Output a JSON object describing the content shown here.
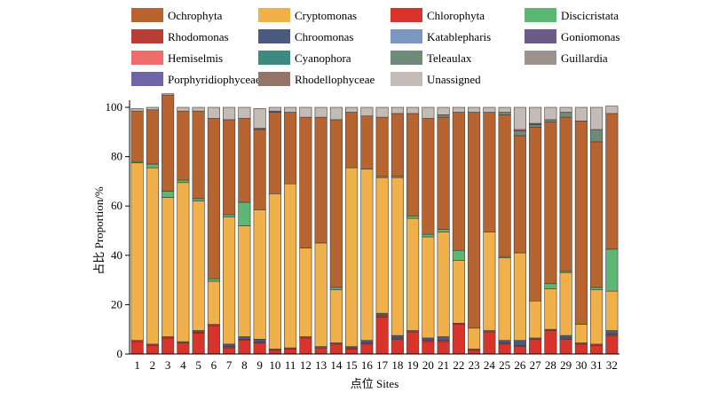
{
  "chart_data": {
    "type": "bar",
    "stacked": true,
    "xlabel": "点位 Sites",
    "ylabel": "占比 Proportion/%",
    "ylim": [
      0,
      100
    ],
    "yticks": [
      0,
      20,
      40,
      60,
      80,
      100
    ],
    "legend_position": "top",
    "categories": [
      "1",
      "2",
      "3",
      "4",
      "5",
      "6",
      "7",
      "8",
      "9",
      "10",
      "11",
      "12",
      "13",
      "14",
      "15",
      "16",
      "17",
      "18",
      "19",
      "20",
      "21",
      "22",
      "23",
      "24",
      "25",
      "26",
      "27",
      "28",
      "29",
      "30",
      "31",
      "32"
    ],
    "series": [
      {
        "name": "Chlorophyta",
        "color": "#d8342b",
        "values": [
          5,
          3.5,
          6.5,
          4.5,
          8.5,
          11.5,
          2.5,
          5.5,
          4.5,
          1.5,
          2,
          6.5,
          2.5,
          4,
          2,
          4,
          15,
          6,
          9,
          5,
          5,
          12,
          1.5,
          9,
          4,
          3,
          6,
          9.5,
          6,
          4,
          3.5,
          7.5
        ]
      },
      {
        "name": "Rhodomonas",
        "color": "#b83d35",
        "values": [
          0.5,
          0.5,
          0.5,
          0.5,
          0.5,
          0.5,
          0.5,
          0.5,
          0.5,
          0.5,
          0.5,
          0.5,
          0.5,
          0.5,
          0.5,
          0.5,
          0.5,
          0.5,
          0.5,
          0.5,
          0.5,
          0.5,
          0.5,
          0.5,
          0.5,
          0.5,
          0.5,
          0.5,
          0.5,
          0.5,
          0.5,
          0.5
        ]
      },
      {
        "name": "Chroomonas",
        "color": "#4a5a7e",
        "values": [
          0,
          0,
          0,
          0,
          0.5,
          0,
          1,
          1,
          1,
          0,
          0,
          0,
          0,
          0,
          0.5,
          1,
          1,
          1,
          0,
          1,
          1.5,
          0,
          0,
          0,
          1,
          2,
          0,
          0,
          1,
          0,
          0,
          1.5
        ]
      },
      {
        "name": "Cryptomonas",
        "color": "#f0b14a",
        "values": [
          72,
          71.5,
          56.5,
          64.5,
          52.5,
          17.5,
          51.5,
          45,
          52.5,
          63,
          66.5,
          36,
          42,
          21.5,
          72.5,
          69.5,
          55,
          64,
          45.5,
          41,
          42.5,
          25.5,
          8.5,
          40,
          33.5,
          35.5,
          15,
          16.5,
          25.5,
          7.5,
          22,
          16
        ]
      },
      {
        "name": "Discicristata",
        "color": "#5cb774",
        "values": [
          0.5,
          1.5,
          2.5,
          1,
          1,
          1,
          1,
          9.5,
          0,
          0,
          0,
          0,
          0,
          1,
          0,
          0,
          0.5,
          0.5,
          1,
          1,
          1,
          4,
          0,
          0,
          0.5,
          0,
          0,
          2,
          0.5,
          0,
          1,
          17
        ]
      },
      {
        "name": "Ochrophyta",
        "color": "#b76430",
        "values": [
          20.5,
          22,
          39,
          28,
          35.5,
          65,
          38.5,
          34,
          32.5,
          33,
          29,
          53,
          51,
          68,
          22.5,
          21.5,
          24,
          25.5,
          41.5,
          47,
          45.5,
          56,
          87.5,
          48.5,
          57.5,
          47.5,
          70.5,
          65.5,
          62.5,
          82.5,
          59,
          55
        ]
      },
      {
        "name": "Katablepharis",
        "color": "#7b97c1",
        "values": [
          0,
          0,
          0,
          0,
          0,
          0,
          0,
          0,
          0,
          0,
          0,
          0,
          0,
          0,
          0,
          0,
          0,
          0,
          0,
          0,
          0,
          0,
          0,
          0,
          0,
          0,
          0,
          0,
          0,
          0,
          0,
          0
        ]
      },
      {
        "name": "Teleaulax",
        "color": "#6f8a78",
        "values": [
          0,
          0,
          0,
          0,
          0,
          0,
          0,
          0,
          0,
          0,
          0,
          0,
          0,
          0,
          0,
          0,
          0,
          0,
          0,
          0,
          1,
          0,
          0,
          0,
          1,
          2,
          1,
          1,
          2,
          0,
          5,
          0
        ]
      },
      {
        "name": "Cyanophora",
        "color": "#3f8a80",
        "values": [
          0,
          0,
          0,
          0,
          0,
          0,
          0,
          0,
          0,
          0,
          0,
          0,
          0,
          0,
          0,
          0,
          0,
          0,
          0,
          0,
          0,
          0,
          0,
          0,
          0,
          0,
          0,
          0,
          0,
          0,
          0,
          0
        ]
      },
      {
        "name": "Goniomonas",
        "color": "#6c5b86",
        "values": [
          0,
          0,
          0,
          0,
          0,
          0,
          0,
          0,
          0.5,
          0.5,
          0,
          0,
          0,
          0,
          0,
          0,
          0,
          0,
          0,
          0,
          0,
          0,
          0,
          0,
          0,
          0,
          0.5,
          0,
          0,
          0,
          0,
          0
        ]
      },
      {
        "name": "Hemiselmis",
        "color": "#ee6c6c",
        "values": [
          0,
          0,
          0,
          0,
          0,
          0,
          0,
          0,
          0,
          0,
          0,
          0,
          0,
          0,
          0,
          0,
          0,
          0,
          0,
          0,
          0,
          0,
          0,
          0,
          0,
          0.5,
          0,
          0,
          0,
          0,
          0,
          0
        ]
      },
      {
        "name": "Guillardia",
        "color": "#9d938d",
        "values": [
          0,
          0,
          0,
          0,
          0,
          0,
          0,
          0,
          0,
          0,
          0,
          0,
          0,
          0,
          0,
          0,
          0,
          0,
          0,
          0,
          0,
          0,
          0,
          0,
          0,
          0,
          0,
          0,
          0,
          0,
          0,
          0
        ]
      },
      {
        "name": "Porphyridiophyceae",
        "color": "#6f64a8",
        "values": [
          0,
          0,
          0,
          0,
          0,
          0,
          0,
          0,
          0,
          0,
          0,
          0,
          0,
          0,
          0,
          0,
          0,
          0,
          0,
          0,
          0,
          0,
          0,
          0,
          0,
          0,
          0,
          0,
          0,
          0,
          0,
          0
        ]
      },
      {
        "name": "Rhodellophyceae",
        "color": "#957468",
        "values": [
          0,
          0,
          0,
          0,
          0,
          0,
          0,
          0,
          0,
          0,
          0,
          0,
          0,
          0,
          0,
          0,
          0,
          0,
          0,
          0,
          0,
          0,
          0,
          0,
          0,
          0,
          0,
          0,
          0,
          0,
          0,
          0
        ]
      },
      {
        "name": "Unassigned",
        "color": "#c4bab6",
        "values": [
          1,
          1,
          0.5,
          1.5,
          1.5,
          4.5,
          5,
          4.5,
          8,
          1.5,
          2,
          4,
          4,
          5,
          2,
          3.5,
          4,
          2.5,
          2.5,
          4.5,
          3,
          2,
          2,
          2,
          2,
          9,
          6.5,
          5,
          2,
          5.5,
          9,
          3
        ]
      }
    ],
    "legend_order": [
      "Ochrophyta",
      "Cryptomonas",
      "Chlorophyta",
      "Discicristata",
      "Rhodomonas",
      "Chroomonas",
      "Katablepharis",
      "Goniomonas",
      "Hemiselmis",
      "Cyanophora",
      "Teleaulax",
      "Guillardia",
      "Porphyridiophyceae",
      "Rhodellophyceae",
      "Unassigned"
    ]
  }
}
